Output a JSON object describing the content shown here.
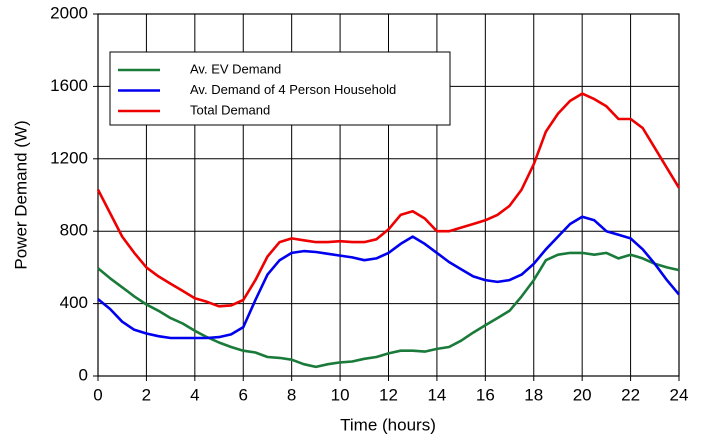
{
  "chart_data": {
    "type": "line",
    "x_label": "Time (hours)",
    "y_label": "Power Demand (W)",
    "xlim": [
      0,
      24
    ],
    "ylim": [
      0,
      2000
    ],
    "xticks": [
      0,
      2,
      4,
      6,
      8,
      10,
      12,
      14,
      16,
      18,
      20,
      22,
      24
    ],
    "yticks": [
      0,
      400,
      800,
      1200,
      1600,
      2000
    ],
    "grid": true,
    "legend": "upper left",
    "x": [
      0,
      0.5,
      1,
      1.5,
      2,
      2.5,
      3,
      3.5,
      4,
      4.5,
      5,
      5.5,
      6,
      6.5,
      7,
      7.5,
      8,
      8.5,
      9,
      9.5,
      10,
      10.5,
      11,
      11.5,
      12,
      12.5,
      13,
      13.5,
      14,
      14.5,
      15,
      15.5,
      16,
      16.5,
      17,
      17.5,
      18,
      18.5,
      19,
      19.5,
      20,
      20.5,
      21,
      21.5,
      22,
      22.5,
      23,
      23.5,
      24
    ],
    "series": [
      {
        "name": "Av. EV Demand",
        "color": "#1a7a3a",
        "values": [
          595,
          540,
          490,
          440,
          395,
          360,
          320,
          290,
          250,
          215,
          185,
          160,
          140,
          130,
          105,
          100,
          90,
          65,
          50,
          65,
          75,
          80,
          95,
          105,
          125,
          140,
          140,
          135,
          150,
          160,
          195,
          240,
          280,
          320,
          360,
          440,
          530,
          640,
          670,
          680,
          680,
          670,
          680,
          650,
          670,
          650,
          620,
          600,
          585
        ]
      },
      {
        "name": "Av. Demand of 4 Person Household",
        "color": "#0000ee",
        "values": [
          425,
          370,
          300,
          255,
          235,
          220,
          210,
          210,
          210,
          210,
          215,
          230,
          270,
          420,
          560,
          640,
          680,
          690,
          685,
          675,
          665,
          655,
          640,
          650,
          680,
          730,
          770,
          730,
          680,
          630,
          590,
          550,
          530,
          520,
          530,
          560,
          620,
          700,
          770,
          840,
          880,
          860,
          800,
          780,
          760,
          700,
          620,
          530,
          450
        ]
      },
      {
        "name": "Total Demand",
        "color": "#ee0000",
        "values": [
          1030,
          900,
          770,
          680,
          600,
          550,
          510,
          470,
          430,
          410,
          385,
          390,
          420,
          530,
          660,
          740,
          760,
          750,
          740,
          740,
          745,
          740,
          740,
          755,
          810,
          890,
          910,
          870,
          800,
          800,
          820,
          840,
          860,
          890,
          940,
          1030,
          1170,
          1350,
          1450,
          1520,
          1560,
          1530,
          1490,
          1420,
          1420,
          1370,
          1260,
          1150,
          1040
        ]
      }
    ]
  }
}
